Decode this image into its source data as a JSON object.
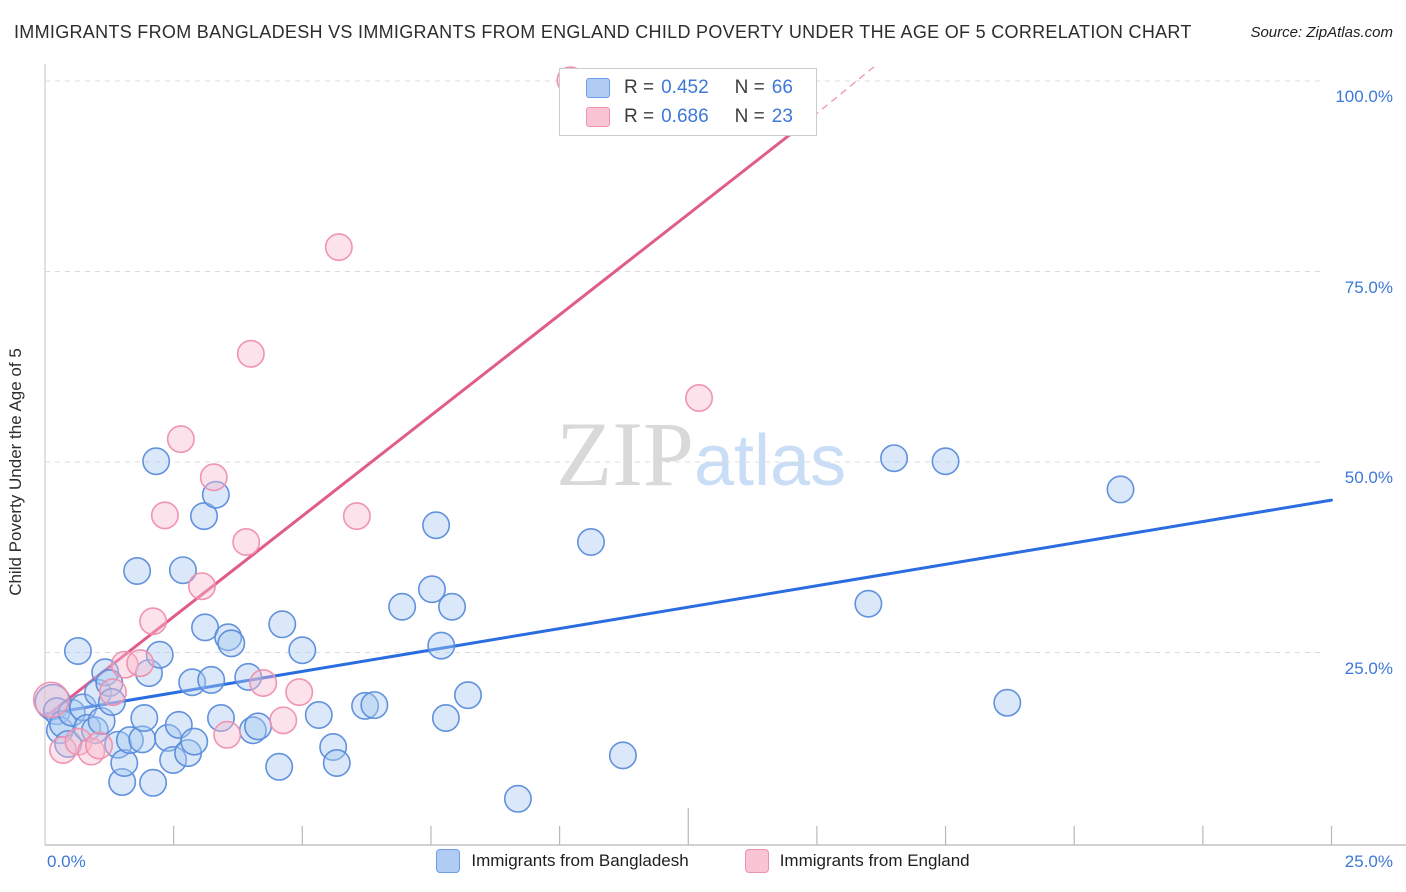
{
  "header": {
    "title": "IMMIGRANTS FROM BANGLADESH VS IMMIGRANTS FROM ENGLAND CHILD POVERTY UNDER THE AGE OF 5 CORRELATION CHART",
    "source": "Source: ZipAtlas.com"
  },
  "watermark": {
    "part1": "ZIP",
    "part2": "atlas"
  },
  "legend_box": {
    "rows": [
      {
        "series": "Immigrants from Bangladesh",
        "r_label": "R =",
        "r_value": "0.452",
        "n_label": "N =",
        "n_value": "66"
      },
      {
        "series": "Immigrants from England",
        "r_label": "R =",
        "r_value": "0.686",
        "n_label": "N =",
        "n_value": "23"
      }
    ]
  },
  "axes": {
    "y_axis_label": "Child Poverty Under the Age of 5",
    "y_tick_labels": [
      "100.0%",
      "75.0%",
      "50.0%",
      "25.0%"
    ],
    "x_tick_left": "0.0%",
    "x_tick_right": "25.0%",
    "tick_label_color": "#3e78d8"
  },
  "bottom_legend": {
    "items": [
      {
        "label": "Immigrants from Bangladesh",
        "fill": "#b1ccf3",
        "border": "#6f9ee8"
      },
      {
        "label": "Immigrants from England",
        "fill": "#f9c4d4",
        "border": "#f092ae"
      }
    ]
  },
  "chart_data": {
    "type": "scatter",
    "title": "Immigrants from Bangladesh vs Immigrants from England Child Poverty Under the Age of 5",
    "xlabel": "",
    "ylabel": "Child Poverty Under the Age of 5",
    "xlim": [
      0,
      26.4
    ],
    "ylim": [
      0,
      104
    ],
    "grid": "horizontal-dashed",
    "y_gridlines_percent": [
      25,
      50,
      75,
      100
    ],
    "x_ticks_percent": [
      2.5,
      5,
      7.5,
      10,
      12.5,
      15,
      17.5,
      20,
      22.5,
      25
    ],
    "legend_position": "bottom-center",
    "series": [
      {
        "name": "Immigrants from Bangladesh",
        "R": 0.452,
        "N": 66,
        "point_fill": "#a8c8f0",
        "point_stroke": "#5b8cdb",
        "trend_color": "#2b6de0",
        "trend": {
          "x1": 0,
          "y1": 16.9,
          "x2": 25,
          "y2": 45.0
        },
        "points": [
          [
            0.15,
            18.5,
            17.5
          ],
          [
            0.23,
            17.3
          ],
          [
            0.29,
            14.8
          ],
          [
            0.35,
            15.6
          ],
          [
            0.45,
            13.0
          ],
          [
            0.52,
            17.1
          ],
          [
            0.64,
            25.2
          ],
          [
            0.74,
            17.8
          ],
          [
            0.82,
            15.1
          ],
          [
            0.97,
            14.8
          ],
          [
            1.03,
            19.7
          ],
          [
            1.1,
            16.0
          ],
          [
            1.17,
            22.4
          ],
          [
            1.25,
            21.0
          ],
          [
            1.3,
            18.5
          ],
          [
            1.42,
            12.9
          ],
          [
            1.5,
            8.0
          ],
          [
            1.54,
            10.5
          ],
          [
            1.65,
            13.5
          ],
          [
            1.79,
            35.7
          ],
          [
            1.89,
            13.6
          ],
          [
            1.93,
            16.4
          ],
          [
            2.02,
            22.3
          ],
          [
            2.1,
            7.9
          ],
          [
            2.16,
            50.1
          ],
          [
            2.23,
            24.7
          ],
          [
            2.39,
            13.8
          ],
          [
            2.49,
            10.9
          ],
          [
            2.6,
            15.5
          ],
          [
            2.68,
            35.8
          ],
          [
            2.78,
            11.8
          ],
          [
            2.86,
            21.1
          ],
          [
            2.9,
            13.3
          ],
          [
            3.09,
            42.9
          ],
          [
            3.11,
            28.3
          ],
          [
            3.23,
            21.4
          ],
          [
            3.32,
            45.7
          ],
          [
            3.42,
            16.4
          ],
          [
            3.56,
            27.0
          ],
          [
            3.62,
            26.2
          ],
          [
            3.95,
            21.8
          ],
          [
            4.04,
            14.8
          ],
          [
            4.14,
            15.3
          ],
          [
            4.55,
            10.0
          ],
          [
            4.61,
            28.7
          ],
          [
            5.0,
            25.3
          ],
          [
            5.32,
            16.8
          ],
          [
            5.6,
            12.6
          ],
          [
            5.67,
            10.5
          ],
          [
            6.22,
            18.0
          ],
          [
            6.4,
            18.1
          ],
          [
            6.94,
            31.0
          ],
          [
            7.52,
            33.3
          ],
          [
            7.6,
            41.7
          ],
          [
            7.7,
            25.9
          ],
          [
            7.79,
            16.4
          ],
          [
            7.91,
            31.0
          ],
          [
            8.22,
            19.4
          ],
          [
            9.19,
            5.8
          ],
          [
            10.61,
            39.5
          ],
          [
            11.23,
            11.5
          ],
          [
            16.0,
            31.4
          ],
          [
            16.5,
            50.5
          ],
          [
            17.5,
            50.1
          ],
          [
            18.7,
            18.4
          ],
          [
            20.9,
            46.4
          ]
        ]
      },
      {
        "name": "Immigrants from England",
        "R": 0.686,
        "N": 23,
        "point_fill": "#f7b9cd",
        "point_stroke": "#ef8fad",
        "trend_color": "#e05c8a",
        "trend": {
          "x1": 0,
          "y1": 16.5,
          "x2": 14.92,
          "y2": 95.3
        },
        "trend_dashed_tail": {
          "x1": 14.92,
          "y1": 95.3,
          "x2": 16.17,
          "y2": 102.2
        },
        "points": [
          [
            0.12,
            18.8,
            17.5
          ],
          [
            0.35,
            12.2
          ],
          [
            0.65,
            13.3
          ],
          [
            0.9,
            12.0
          ],
          [
            1.05,
            12.8
          ],
          [
            1.32,
            19.8
          ],
          [
            1.55,
            23.4
          ],
          [
            1.85,
            23.6
          ],
          [
            2.1,
            29.1
          ],
          [
            2.33,
            43.0
          ],
          [
            2.64,
            53.0
          ],
          [
            3.05,
            33.7
          ],
          [
            3.28,
            48.0
          ],
          [
            3.54,
            14.2
          ],
          [
            3.91,
            39.5
          ],
          [
            4.0,
            64.2
          ],
          [
            4.24,
            21.0
          ],
          [
            4.63,
            16.1
          ],
          [
            4.94,
            19.8
          ],
          [
            5.71,
            78.2
          ],
          [
            6.06,
            42.9
          ],
          [
            10.21,
            100.1
          ],
          [
            12.71,
            58.4
          ]
        ]
      }
    ]
  }
}
